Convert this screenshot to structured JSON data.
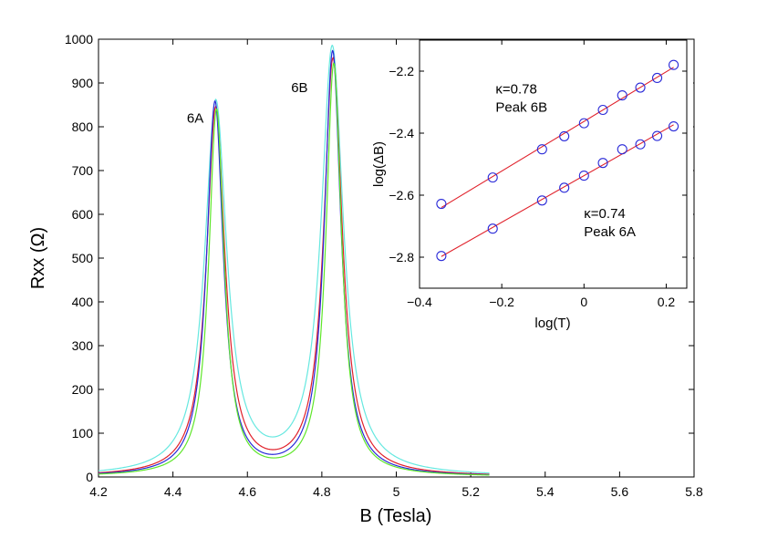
{
  "chart_data": [
    {
      "type": "line",
      "xlabel": "B (Tesla)",
      "ylabel": "Rxx (Ω)",
      "xlim": [
        4.2,
        5.8
      ],
      "ylim": [
        0,
        1000
      ],
      "xticks": [
        4.2,
        4.4,
        4.6,
        4.8,
        5.0,
        5.2,
        5.4,
        5.6,
        5.8
      ],
      "xtick_labels": [
        "4.2",
        "4.4",
        "4.6",
        "4.8",
        "5",
        "5.2",
        "5.4",
        "5.6",
        "5.8"
      ],
      "yticks": [
        0,
        100,
        200,
        300,
        400,
        500,
        600,
        700,
        800,
        900,
        1000
      ],
      "ytick_labels": [
        "0",
        "100",
        "200",
        "300",
        "400",
        "500",
        "600",
        "700",
        "800",
        "900",
        "1000"
      ],
      "annotations": [
        {
          "text": "6A",
          "x": 4.46,
          "y": 820
        },
        {
          "text": "6B",
          "x": 4.74,
          "y": 890
        }
      ],
      "series": [
        {
          "name": "cyan",
          "color": "#66e8e0",
          "peakA": {
            "x": 4.515,
            "h": 850,
            "w": 0.036
          },
          "peakB": {
            "x": 4.828,
            "h": 975,
            "w": 0.036
          },
          "bg": 0
        },
        {
          "name": "red",
          "color": "#e0202a",
          "peakA": {
            "x": 4.515,
            "h": 838,
            "w": 0.03
          },
          "peakB": {
            "x": 4.83,
            "h": 950,
            "w": 0.03
          },
          "bg": 0
        },
        {
          "name": "blue",
          "color": "#2a2ad8",
          "peakA": {
            "x": 4.513,
            "h": 852,
            "w": 0.027
          },
          "peakB": {
            "x": 4.829,
            "h": 968,
            "w": 0.027
          },
          "bg": 0
        },
        {
          "name": "green",
          "color": "#5ee62a",
          "peakA": {
            "x": 4.517,
            "h": 835,
            "w": 0.025
          },
          "peakB": {
            "x": 4.832,
            "h": 940,
            "w": 0.025
          },
          "bg": 0
        }
      ]
    },
    {
      "type": "scatter",
      "inset": true,
      "xlabel": "log(T)",
      "ylabel": "log(ΔB)",
      "xlim": [
        -0.4,
        0.25
      ],
      "ylim": [
        -2.9,
        -2.1
      ],
      "xticks": [
        -0.4,
        -0.2,
        0,
        0.2
      ],
      "xtick_labels": [
        "−0.4",
        "−0.2",
        "0",
        "0.2"
      ],
      "yticks": [
        -2.8,
        -2.6,
        -2.4,
        -2.2
      ],
      "ytick_labels": [
        "−2.8",
        "−2.6",
        "−2.4",
        "−2.2"
      ],
      "annotations": [
        {
          "lines": [
            "κ=0.78",
            "Peak 6B"
          ],
          "x": -0.215,
          "y": -2.295
        },
        {
          "lines": [
            "κ=0.74",
            "Peak 6A"
          ],
          "x": 0.0,
          "y": -2.7
        }
      ],
      "series": [
        {
          "name": "Peak 6B",
          "x": [
            -0.347,
            -0.222,
            -0.102,
            -0.048,
            0.0,
            0.046,
            0.093,
            0.137,
            0.178,
            0.218
          ],
          "y": [
            -2.628,
            -2.543,
            -2.452,
            -2.41,
            -2.368,
            -2.325,
            -2.278,
            -2.253,
            -2.222,
            -2.18
          ],
          "fit": {
            "slope": 0.78,
            "x0": -0.347,
            "x1": 0.218
          }
        },
        {
          "name": "Peak 6A",
          "x": [
            -0.347,
            -0.222,
            -0.102,
            -0.048,
            0.0,
            0.046,
            0.093,
            0.137,
            0.178,
            0.218
          ],
          "y": [
            -2.796,
            -2.708,
            -2.617,
            -2.576,
            -2.537,
            -2.496,
            -2.452,
            -2.436,
            -2.409,
            -2.378
          ],
          "fit": {
            "slope": 0.74,
            "x0": -0.347,
            "x1": 0.218
          }
        }
      ],
      "marker_color": "#2a2ad8",
      "fit_color": "#e0202a"
    }
  ]
}
